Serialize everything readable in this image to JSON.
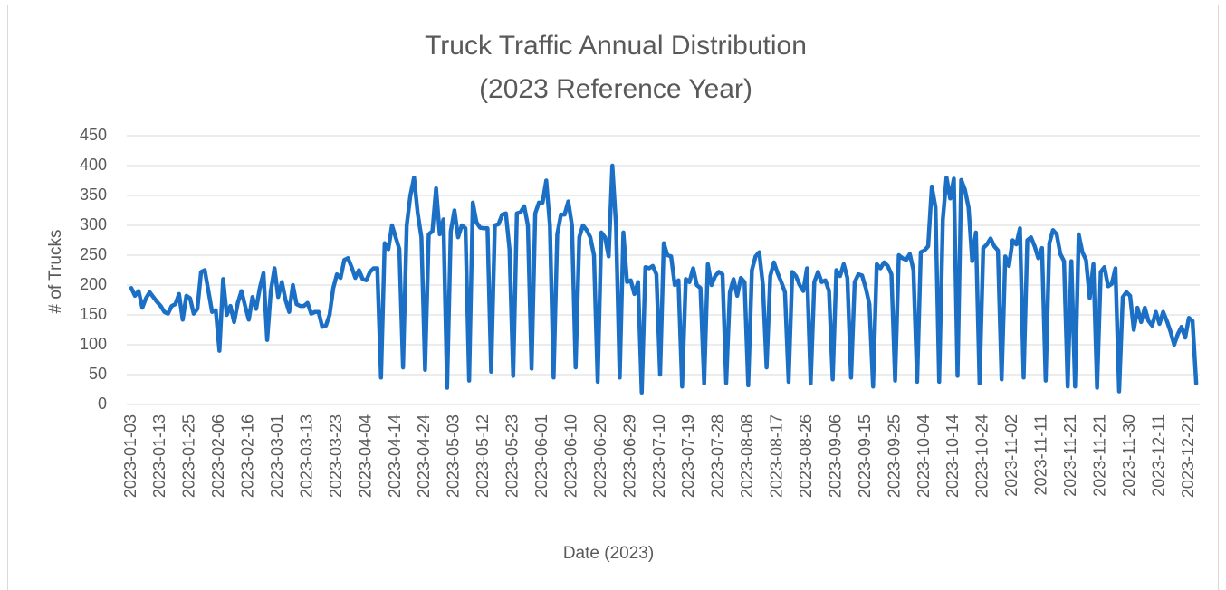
{
  "chart_data": {
    "type": "line",
    "title": [
      "Truck Traffic Annual Distribution",
      "(2023 Reference Year)"
    ],
    "x_label": "Date (2023)",
    "y_label": "# of Trucks",
    "ylim": [
      0,
      450
    ],
    "yticks": [
      0,
      50,
      100,
      150,
      200,
      250,
      300,
      350,
      400,
      450
    ],
    "grid": true,
    "categories": [
      "2023-01-03",
      null,
      null,
      null,
      null,
      null,
      null,
      null,
      "2023-01-13",
      null,
      null,
      null,
      null,
      null,
      null,
      null,
      "2023-01-25",
      null,
      null,
      null,
      null,
      null,
      null,
      null,
      "2023-02-06",
      null,
      null,
      null,
      null,
      null,
      null,
      null,
      "2023-02-16",
      null,
      null,
      null,
      null,
      null,
      null,
      null,
      "2023-03-01",
      null,
      null,
      null,
      null,
      null,
      null,
      null,
      "2023-03-13",
      null,
      null,
      null,
      null,
      null,
      null,
      null,
      "2023-03-23",
      null,
      null,
      null,
      null,
      null,
      null,
      null,
      "2023-04-04",
      null,
      null,
      null,
      null,
      null,
      null,
      null,
      "2023-04-14",
      null,
      null,
      null,
      null,
      null,
      null,
      null,
      "2023-04-24",
      null,
      null,
      null,
      null,
      null,
      null,
      null,
      "2023-05-03",
      null,
      null,
      null,
      null,
      null,
      null,
      null,
      "2023-05-12",
      null,
      null,
      null,
      null,
      null,
      null,
      null,
      "2023-05-23",
      null,
      null,
      null,
      null,
      null,
      null,
      null,
      "2023-06-01",
      null,
      null,
      null,
      null,
      null,
      null,
      null,
      "2023-06-10",
      null,
      null,
      null,
      null,
      null,
      null,
      null,
      "2023-06-20",
      null,
      null,
      null,
      null,
      null,
      null,
      null,
      "2023-06-29",
      null,
      null,
      null,
      null,
      null,
      null,
      null,
      "2023-07-10",
      null,
      null,
      null,
      null,
      null,
      null,
      null,
      "2023-07-19",
      null,
      null,
      null,
      null,
      null,
      null,
      null,
      "2023-07-28",
      null,
      null,
      null,
      null,
      null,
      null,
      null,
      "2023-08-08",
      null,
      null,
      null,
      null,
      null,
      null,
      null,
      "2023-08-17",
      null,
      null,
      null,
      null,
      null,
      null,
      null,
      "2023-08-26",
      null,
      null,
      null,
      null,
      null,
      null,
      null,
      "2023-09-06",
      null,
      null,
      null,
      null,
      null,
      null,
      null,
      "2023-09-15",
      null,
      null,
      null,
      null,
      null,
      null,
      null,
      "2023-09-25",
      null,
      null,
      null,
      null,
      null,
      null,
      null,
      "2023-10-04",
      null,
      null,
      null,
      null,
      null,
      null,
      null,
      "2023-10-14",
      null,
      null,
      null,
      null,
      null,
      null,
      null,
      "2023-10-24",
      null,
      null,
      null,
      null,
      null,
      null,
      null,
      "2023-11-02",
      null,
      null,
      null,
      null,
      null,
      null,
      null,
      "2023-11-11",
      null,
      null,
      null,
      null,
      null,
      null,
      null,
      "2023-11-21",
      null,
      null,
      null,
      null,
      null,
      null,
      null,
      "2023-11-21",
      null,
      null,
      null,
      null,
      null,
      null,
      null,
      "2023-11-30",
      null,
      null,
      null,
      null,
      null,
      null,
      null,
      "2023-12-11",
      null,
      null,
      null,
      null,
      null,
      null,
      null,
      "2023-12-21",
      null,
      null
    ],
    "series": [
      {
        "name": "Trucks",
        "color": "#1b70c6",
        "values": [
          195,
          182,
          190,
          162,
          178,
          188,
          180,
          172,
          165,
          155,
          152,
          165,
          168,
          185,
          142,
          182,
          178,
          152,
          160,
          222,
          225,
          190,
          155,
          158,
          90,
          210,
          150,
          165,
          138,
          170,
          190,
          165,
          142,
          180,
          160,
          195,
          220,
          108,
          190,
          228,
          180,
          205,
          175,
          155,
          200,
          168,
          165,
          165,
          170,
          152,
          155,
          155,
          130,
          132,
          150,
          195,
          218,
          212,
          242,
          245,
          230,
          212,
          225,
          210,
          208,
          222,
          228,
          228,
          45,
          270,
          260,
          300,
          280,
          260,
          62,
          300,
          350,
          380,
          320,
          280,
          58,
          285,
          290,
          362,
          285,
          310,
          28,
          290,
          325,
          280,
          300,
          295,
          40,
          338,
          305,
          296,
          295,
          295,
          55,
          300,
          302,
          318,
          320,
          260,
          48,
          320,
          322,
          332,
          300,
          60,
          320,
          338,
          338,
          375,
          300,
          45,
          285,
          318,
          318,
          340,
          300,
          62,
          280,
          300,
          292,
          280,
          250,
          38,
          288,
          280,
          248,
          400,
          300,
          45,
          288,
          205,
          208,
          185,
          205,
          20,
          230,
          228,
          232,
          218,
          50,
          270,
          250,
          248,
          200,
          208,
          30,
          210,
          205,
          228,
          200,
          195,
          35,
          235,
          200,
          215,
          222,
          218,
          36,
          188,
          210,
          182,
          212,
          205,
          32,
          225,
          248,
          255,
          200,
          62,
          215,
          238,
          220,
          205,
          188,
          38,
          222,
          215,
          200,
          190,
          228,
          35,
          205,
          222,
          205,
          208,
          190,
          42,
          225,
          215,
          235,
          212,
          45,
          205,
          218,
          216,
          195,
          168,
          30,
          235,
          228,
          238,
          232,
          218,
          40,
          250,
          245,
          242,
          252,
          225,
          38,
          255,
          258,
          265,
          365,
          330,
          38,
          310,
          380,
          345,
          378,
          48,
          376,
          360,
          330,
          240,
          288,
          35,
          262,
          268,
          278,
          265,
          258,
          42,
          248,
          232,
          275,
          268,
          295,
          45,
          275,
          280,
          265,
          245,
          262,
          40,
          270,
          292,
          285,
          252,
          240,
          30,
          240,
          30,
          285,
          255,
          242,
          178,
          235,
          28,
          222,
          230,
          198,
          202,
          228,
          22,
          180,
          188,
          182,
          125,
          162,
          138,
          162,
          140,
          132,
          155,
          135,
          155,
          140,
          122,
          100,
          118,
          130,
          112,
          145,
          140,
          35
        ]
      }
    ]
  }
}
